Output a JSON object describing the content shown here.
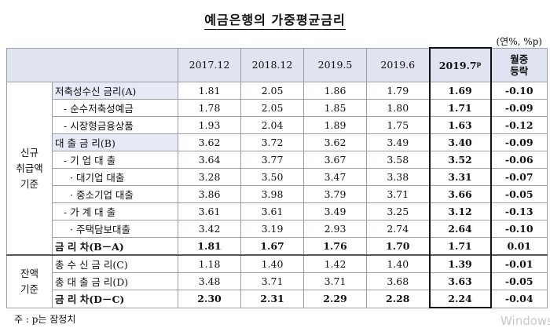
{
  "title": "예금은행의 가중평균금리",
  "unit": "(연%, %p)",
  "columns": [
    "2017.12",
    "2018.12",
    "2019.5",
    "2019.6",
    "2019.7",
    "p",
    "월중\n등락"
  ],
  "col_change_line1": "월중",
  "col_change_line2": "등락",
  "groups": {
    "new": "신규\n취급액\n기준",
    "balance": "잔액\n기준"
  },
  "rows": [
    {
      "label": "저축성수신 금리(A)",
      "v": [
        "1.81",
        "2.05",
        "1.86",
        "1.79",
        "1.69",
        "-0.10"
      ]
    },
    {
      "label": "- 순수저축성예금",
      "v": [
        "1.78",
        "2.05",
        "1.85",
        "1.80",
        "1.71",
        "-0.09"
      ]
    },
    {
      "label": "- 시장형금융상품",
      "v": [
        "1.93",
        "2.04",
        "1.89",
        "1.75",
        "1.63",
        "-0.12"
      ]
    },
    {
      "label": "대 출 금 리(B)",
      "v": [
        "3.62",
        "3.72",
        "3.62",
        "3.49",
        "3.40",
        "-0.09"
      ]
    },
    {
      "label": "- 기 업 대 출",
      "v": [
        "3.64",
        "3.77",
        "3.67",
        "3.58",
        "3.52",
        "-0.06"
      ]
    },
    {
      "label": "· 대기업 대출",
      "v": [
        "3.28",
        "3.50",
        "3.47",
        "3.38",
        "3.31",
        "-0.07"
      ]
    },
    {
      "label": "· 중소기업 대출",
      "v": [
        "3.86",
        "3.98",
        "3.79",
        "3.71",
        "3.66",
        "-0.05"
      ]
    },
    {
      "label": "- 가 계 대 출",
      "v": [
        "3.61",
        "3.61",
        "3.49",
        "3.25",
        "3.12",
        "-0.13"
      ]
    },
    {
      "label": "· 주택담보대출",
      "v": [
        "3.42",
        "3.19",
        "2.93",
        "2.74",
        "2.64",
        "-0.10"
      ]
    },
    {
      "label": "금 리 차(B－A)",
      "v": [
        "1.81",
        "1.67",
        "1.76",
        "1.70",
        "1.71",
        "0.01"
      ]
    },
    {
      "label": "총 수 신 금 리(C)",
      "v": [
        "1.18",
        "1.40",
        "1.42",
        "1.40",
        "1.39",
        "-0.01"
      ]
    },
    {
      "label": "총 대 출 금 리(D)",
      "v": [
        "3.48",
        "3.71",
        "3.71",
        "3.68",
        "3.63",
        "-0.05"
      ]
    },
    {
      "label": "금 리 차(D－C)",
      "v": [
        "2.30",
        "2.31",
        "2.29",
        "2.28",
        "2.24",
        "-0.04"
      ]
    }
  ],
  "note": "주 : p는 잠정치",
  "watermark": "Windows"
}
